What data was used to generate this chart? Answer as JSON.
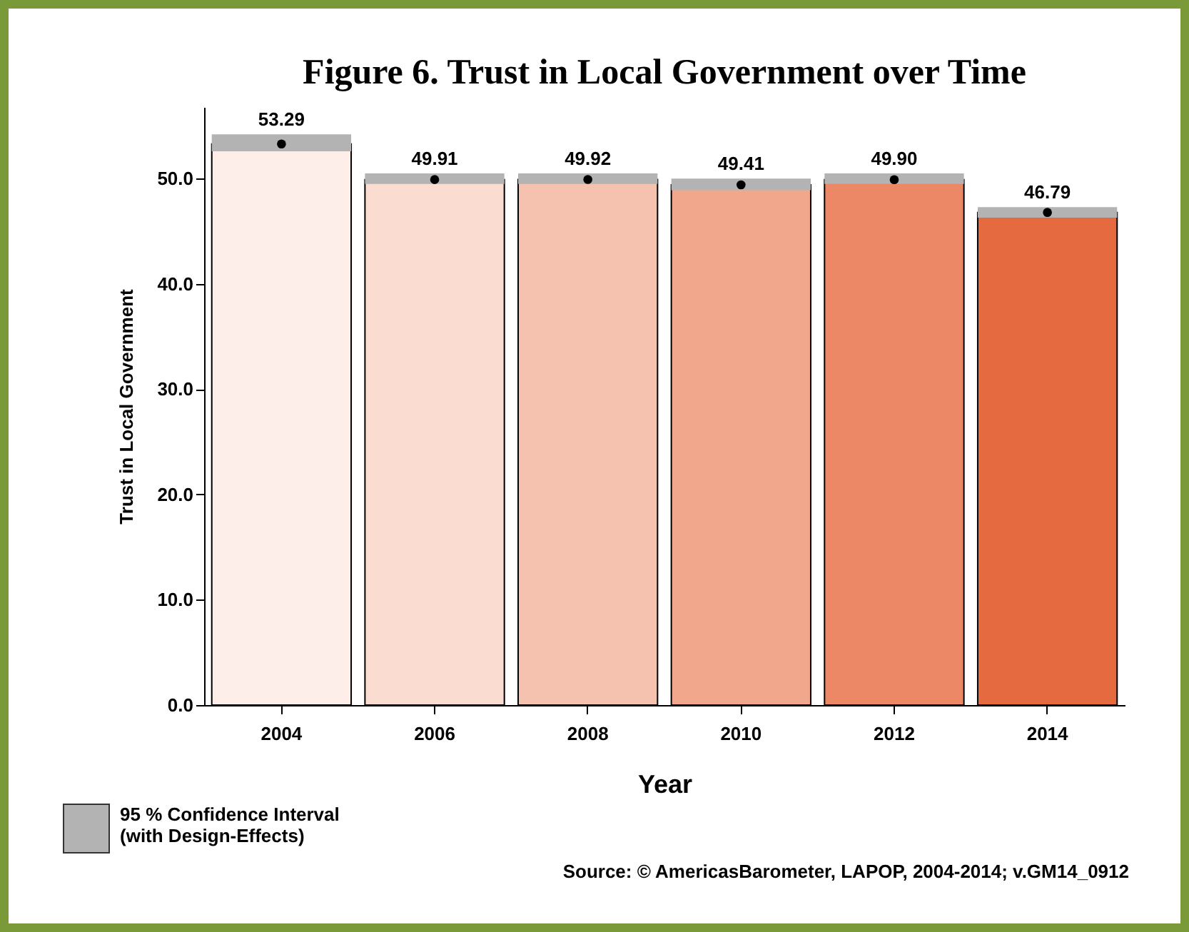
{
  "chart_data": {
    "type": "bar",
    "title": "Figure 6. Trust in Local Government over Time",
    "xlabel": "Year",
    "ylabel": "Trust in Local Government",
    "categories": [
      "2004",
      "2006",
      "2008",
      "2010",
      "2012",
      "2014"
    ],
    "series": [
      {
        "colors": [
          "#fdeee9",
          "#fadcd1",
          "#f5c2b0",
          "#f0a78c",
          "#ec8866",
          "#e66a40"
        ],
        "values": [
          53.29,
          49.91,
          49.92,
          49.41,
          49.9,
          46.79
        ],
        "value_labels": [
          "53.29",
          "49.91",
          "49.92",
          "49.41",
          "49.90",
          "46.79"
        ],
        "errors": [
          [
            52.6,
            54.2
          ],
          [
            49.5,
            50.5
          ],
          [
            49.5,
            50.5
          ],
          [
            48.9,
            50.0
          ],
          [
            49.5,
            50.5
          ],
          [
            46.3,
            47.3
          ]
        ]
      },
      {
        "type": "scatter",
        "color": "#000000",
        "marker": "circle",
        "values": [
          53.29,
          49.91,
          49.92,
          49.41,
          49.9,
          46.79
        ]
      }
    ],
    "ylim": [
      0,
      56.8
    ],
    "yticks": [
      {
        "value": 0,
        "label": "0.0"
      },
      {
        "value": 10,
        "label": "10.0"
      },
      {
        "value": 20,
        "label": "20.0"
      },
      {
        "value": 30,
        "label": "30.0"
      },
      {
        "value": 40,
        "label": "40.0"
      },
      {
        "value": 50,
        "label": "50.0"
      }
    ],
    "grid": false,
    "annotations": [
      "95 % Confidence Interval\n(with Design-Effects)",
      "Source: © AmericasBarometer, LAPOP, 2004-2014; v.GM14_0912"
    ]
  }
}
